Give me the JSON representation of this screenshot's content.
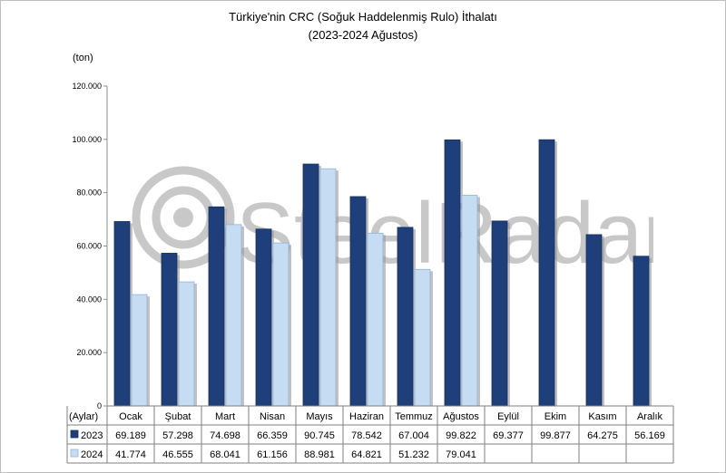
{
  "title_line1": "Türkiye'nin CRC (Soğuk Haddelenmiş Rulo) İthalatı",
  "title_line2": "(2023-2024 Ağustos)",
  "watermark": "SteelRadar",
  "chart_data": {
    "type": "bar",
    "unit": "(ton)",
    "x_header": "(Aylar)",
    "categories": [
      "Ocak",
      "Şubat",
      "Mart",
      "Nisan",
      "Mayıs",
      "Haziran",
      "Temmuz",
      "Ağustos",
      "Eylül",
      "Ekim",
      "Kasım",
      "Aralık"
    ],
    "series": [
      {
        "name": "2023",
        "color": "#1f3f7a",
        "values": [
          69189,
          57298,
          74698,
          66359,
          90745,
          78542,
          67004,
          99822,
          69377,
          99877,
          64275,
          56169
        ],
        "labels": [
          "69.189",
          "57.298",
          "74.698",
          "66.359",
          "90.745",
          "78.542",
          "67.004",
          "99.822",
          "69.377",
          "99.877",
          "64.275",
          "56.169"
        ]
      },
      {
        "name": "2024",
        "color": "#c6dcf3",
        "values": [
          41774,
          46555,
          68041,
          61156,
          88981,
          64821,
          51232,
          79041,
          null,
          null,
          null,
          null
        ],
        "labels": [
          "41.774",
          "46.555",
          "68.041",
          "61.156",
          "88.981",
          "64.821",
          "51.232",
          "79.041",
          "",
          "",
          "",
          ""
        ]
      }
    ],
    "ylim": [
      0,
      120000
    ],
    "yticks": [
      0,
      20000,
      40000,
      60000,
      80000,
      100000,
      120000
    ],
    "ytick_labels": [
      "0",
      "20.000",
      "40.000",
      "60.000",
      "80.000",
      "100.000",
      "120.000"
    ],
    "grid": false,
    "legend": "data-table"
  }
}
